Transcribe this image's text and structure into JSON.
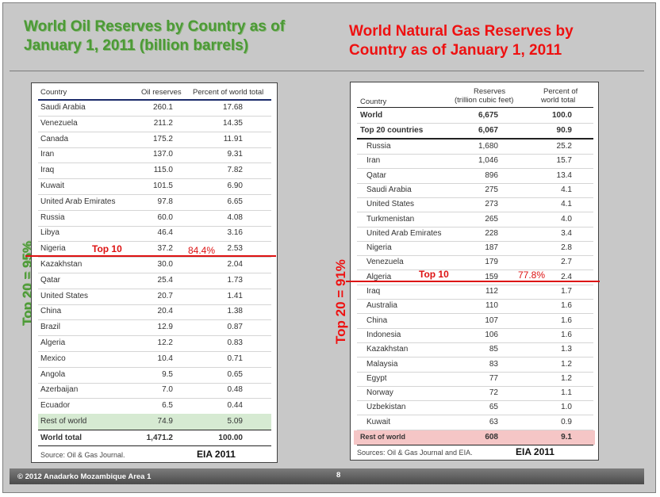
{
  "oil": {
    "title": "World Oil Reserves by Country as of January 1, 2011 (billion barrels)",
    "headers": {
      "country": "Country",
      "reserves": "Oil reserves",
      "percent": "Percent of world total"
    },
    "rows": [
      {
        "country": "Saudi Arabia",
        "reserves": "260.1",
        "percent": "17.68"
      },
      {
        "country": "Venezuela",
        "reserves": "211.2",
        "percent": "14.35"
      },
      {
        "country": "Canada",
        "reserves": "175.2",
        "percent": "11.91"
      },
      {
        "country": "Iran",
        "reserves": "137.0",
        "percent": "9.31"
      },
      {
        "country": "Iraq",
        "reserves": "115.0",
        "percent": "7.82"
      },
      {
        "country": "Kuwait",
        "reserves": "101.5",
        "percent": "6.90"
      },
      {
        "country": "United Arab Emirates",
        "reserves": "97.8",
        "percent": "6.65"
      },
      {
        "country": "Russia",
        "reserves": "60.0",
        "percent": "4.08"
      },
      {
        "country": "Libya",
        "reserves": "46.4",
        "percent": "3.16"
      },
      {
        "country": "Nigeria",
        "reserves": "37.2",
        "percent": "2.53"
      },
      {
        "country": "Kazakhstan",
        "reserves": "30.0",
        "percent": "2.04"
      },
      {
        "country": "Qatar",
        "reserves": "25.4",
        "percent": "1.73"
      },
      {
        "country": "United States",
        "reserves": "20.7",
        "percent": "1.41"
      },
      {
        "country": "China",
        "reserves": "20.4",
        "percent": "1.38"
      },
      {
        "country": "Brazil",
        "reserves": "12.9",
        "percent": "0.87"
      },
      {
        "country": "Algeria",
        "reserves": "12.2",
        "percent": "0.83"
      },
      {
        "country": "Mexico",
        "reserves": "10.4",
        "percent": "0.71"
      },
      {
        "country": "Angola",
        "reserves": "9.5",
        "percent": "0.65"
      },
      {
        "country": "Azerbaijan",
        "reserves": "7.0",
        "percent": "0.48"
      },
      {
        "country": "Ecuador",
        "reserves": "6.5",
        "percent": "0.44"
      },
      {
        "country": "Rest of world",
        "reserves": "74.9",
        "percent": "5.09"
      }
    ],
    "total": {
      "country": "World total",
      "reserves": "1,471.2",
      "percent": "100.00"
    },
    "source": "Source: Oil & Gas Journal.",
    "eia": "EIA 2011",
    "top10_label": "Top 10",
    "top10_pct": "84.4%",
    "side_label": "Top 20 = 95%"
  },
  "gas": {
    "title": "World Natural Gas Reserves by Country as of January 1, 2011",
    "headers": {
      "country": "Country",
      "reserves_l1": "Reserves",
      "reserves_l2": "(trillion cubic feet)",
      "percent_l1": "Percent of",
      "percent_l2": "world total"
    },
    "world": {
      "country": "World",
      "reserves": "6,675",
      "percent": "100.0"
    },
    "top20": {
      "country": "Top 20 countries",
      "reserves": "6,067",
      "percent": "90.9"
    },
    "rows": [
      {
        "country": "Russia",
        "reserves": "1,680",
        "percent": "25.2"
      },
      {
        "country": "Iran",
        "reserves": "1,046",
        "percent": "15.7"
      },
      {
        "country": "Qatar",
        "reserves": "896",
        "percent": "13.4"
      },
      {
        "country": "Saudi Arabia",
        "reserves": "275",
        "percent": "4.1"
      },
      {
        "country": "United States",
        "reserves": "273",
        "percent": "4.1"
      },
      {
        "country": "Turkmenistan",
        "reserves": "265",
        "percent": "4.0"
      },
      {
        "country": "United Arab Emirates",
        "reserves": "228",
        "percent": "3.4"
      },
      {
        "country": "Nigeria",
        "reserves": "187",
        "percent": "2.8"
      },
      {
        "country": "Venezuela",
        "reserves": "179",
        "percent": "2.7"
      },
      {
        "country": "Algeria",
        "reserves": "159",
        "percent": "2.4"
      },
      {
        "country": "Iraq",
        "reserves": "112",
        "percent": "1.7"
      },
      {
        "country": "Australia",
        "reserves": "110",
        "percent": "1.6"
      },
      {
        "country": "China",
        "reserves": "107",
        "percent": "1.6"
      },
      {
        "country": "Indonesia",
        "reserves": "106",
        "percent": "1.6"
      },
      {
        "country": "Kazakhstan",
        "reserves": "85",
        "percent": "1.3"
      },
      {
        "country": "Malaysia",
        "reserves": "83",
        "percent": "1.2"
      },
      {
        "country": "Egypt",
        "reserves": "77",
        "percent": "1.2"
      },
      {
        "country": "Norway",
        "reserves": "72",
        "percent": "1.1"
      },
      {
        "country": "Uzbekistan",
        "reserves": "65",
        "percent": "1.0"
      },
      {
        "country": "Kuwait",
        "reserves": "63",
        "percent": "0.9"
      }
    ],
    "rest": {
      "country": "Rest of world",
      "reserves": "608",
      "percent": "9.1"
    },
    "source": "Sources: Oil & Gas Journal and EIA.",
    "eia": "EIA 2011",
    "top10_label": "Top 10",
    "top10_pct": "77.8%",
    "side_label": "Top 20 = 91%"
  },
  "footer": {
    "copyright": "© 2012  Anadarko Mozambique Area 1",
    "page": "8"
  },
  "colors": {
    "oil_title": "#4c9a36",
    "gas_title": "#ee1111",
    "rest_oil_bg": "#d6ead2",
    "rest_gas_bg": "#f5c6c6",
    "top10_line": "#dd1111"
  }
}
